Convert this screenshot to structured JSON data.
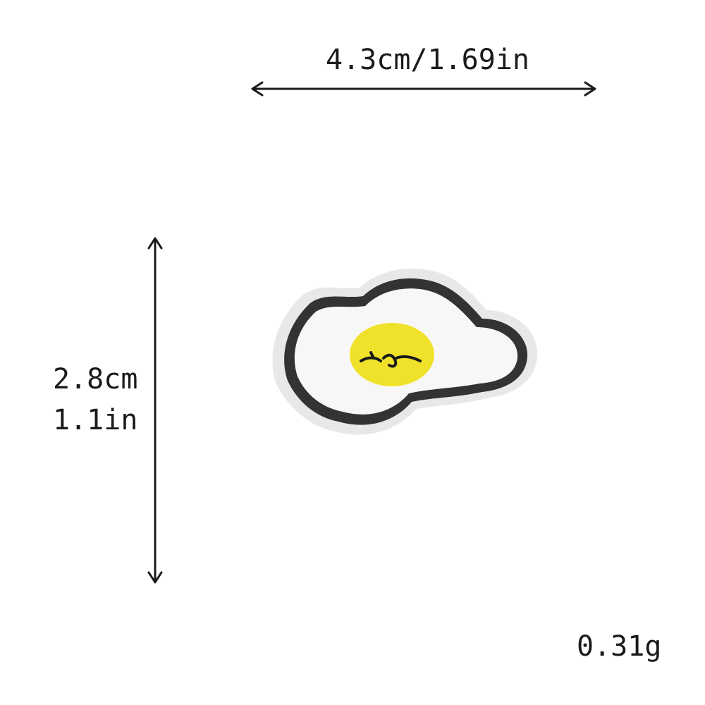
{
  "dimensions": {
    "width_label": "4.3cm/1.69in",
    "height_label_cm": "2.8cm",
    "height_label_in": "1.1in",
    "weight_label": "0.31g"
  },
  "product": {
    "icon": "fried-egg-patch",
    "colors": {
      "outline": "#333333",
      "white": "#f7f7f7",
      "yolk": "#f0e22a",
      "backing": "#e8e8e8"
    }
  }
}
